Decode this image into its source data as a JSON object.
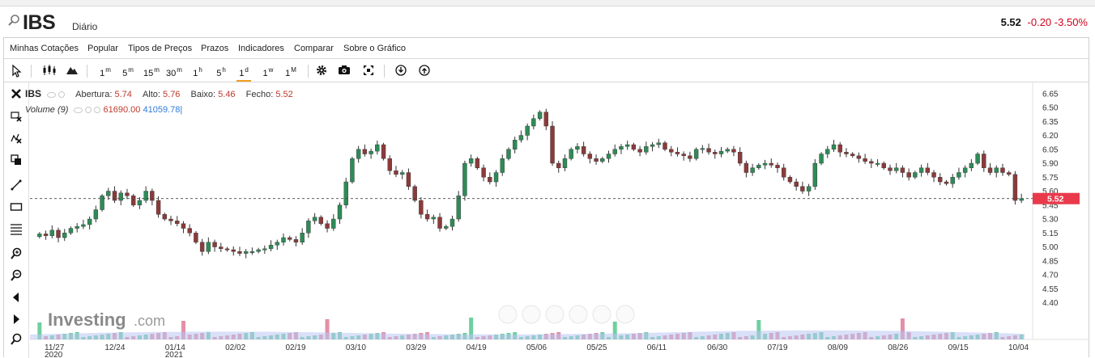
{
  "header": {
    "symbol": "IBS",
    "timeframe": "Diário",
    "price": "5.52",
    "change": "-0.20",
    "change_pct": "-3.50%"
  },
  "menu": [
    "Minhas Cotações",
    "Popular",
    "Tipos de Preços",
    "Prazos",
    "Indicadores",
    "Comparar",
    "Sobre o Gráfico"
  ],
  "toolbar": {
    "intervals": [
      {
        "num": "1",
        "unit": "m"
      },
      {
        "num": "5",
        "unit": "m"
      },
      {
        "num": "15",
        "unit": "m"
      },
      {
        "num": "30",
        "unit": "m"
      },
      {
        "num": "1",
        "unit": "h"
      },
      {
        "num": "5",
        "unit": "h"
      },
      {
        "num": "1",
        "unit": "d"
      },
      {
        "num": "1",
        "unit": "w"
      },
      {
        "num": "1",
        "unit": "M"
      }
    ],
    "active_interval": "1d"
  },
  "legend": {
    "symbol": "IBS",
    "open_label": "Abertura:",
    "open": "5.74",
    "high_label": "Alto:",
    "high": "5.76",
    "low_label": "Baixo:",
    "low": "5.46",
    "close_label": "Fecho:",
    "close": "5.52",
    "volume_label": "Volume (9)",
    "volume": "61690.00",
    "volume_ma": "41059.78"
  },
  "watermark": {
    "brand": "Investing",
    "suffix": ".com"
  },
  "colors": {
    "up": "#2e8b57",
    "down": "#8b3a3a",
    "last_price_tag": "#e83a4b",
    "accent": "#f0a020"
  },
  "chart_data": {
    "type": "candlestick",
    "y_ticks": [
      "6.65",
      "6.50",
      "6.35",
      "6.20",
      "6.05",
      "5.90",
      "5.75",
      "5.60",
      "5.45",
      "5.30",
      "5.15",
      "5.00",
      "4.85",
      "4.70",
      "4.55",
      "4.40"
    ],
    "ylim": [
      4.37,
      6.7
    ],
    "x_ticks": [
      "11/27\n2020",
      "12/24",
      "01/14\n2021",
      "02/02",
      "02/19",
      "03/10",
      "03/29",
      "04/19",
      "05/06",
      "05/25",
      "06/11",
      "06/30",
      "07/19",
      "08/09",
      "08/26",
      "09/15",
      "10/04"
    ],
    "last_price": 5.52,
    "close_series": [
      5.14,
      5.12,
      5.18,
      5.1,
      5.15,
      5.2,
      5.22,
      5.24,
      5.3,
      5.4,
      5.55,
      5.6,
      5.5,
      5.58,
      5.55,
      5.45,
      5.5,
      5.6,
      5.5,
      5.35,
      5.3,
      5.28,
      5.25,
      5.2,
      5.15,
      5.05,
      4.95,
      5.05,
      5.0,
      4.98,
      4.97,
      4.95,
      4.93,
      4.95,
      4.95,
      4.97,
      4.98,
      5.02,
      5.05,
      5.1,
      5.08,
      5.05,
      5.15,
      5.28,
      5.32,
      5.25,
      5.2,
      5.3,
      5.45,
      5.7,
      5.95,
      6.05,
      6.0,
      6.03,
      6.1,
      5.95,
      5.82,
      5.78,
      5.8,
      5.65,
      5.5,
      5.35,
      5.3,
      5.32,
      5.2,
      5.22,
      5.3,
      5.55,
      5.9,
      5.95,
      5.85,
      5.75,
      5.7,
      5.8,
      5.95,
      6.05,
      6.15,
      6.2,
      6.3,
      6.38,
      6.45,
      6.3,
      5.9,
      5.85,
      5.95,
      6.05,
      6.08,
      6.0,
      5.95,
      5.92,
      5.95,
      6.0,
      6.05,
      6.08,
      6.1,
      6.05,
      6.02,
      6.08,
      6.1,
      6.12,
      6.05,
      6.02,
      6.0,
      5.98,
      5.95,
      6.05,
      6.06,
      6.02,
      6.0,
      6.03,
      6.05,
      6.02,
      5.9,
      5.8,
      5.85,
      5.88,
      5.9,
      5.88,
      5.85,
      5.75,
      5.7,
      5.65,
      5.6,
      5.65,
      5.9,
      6.0,
      6.05,
      6.1,
      6.02,
      6.0,
      5.98,
      5.95,
      5.92,
      5.9,
      5.9,
      5.85,
      5.82,
      5.85,
      5.8,
      5.75,
      5.8,
      5.85,
      5.8,
      5.75,
      5.7,
      5.68,
      5.75,
      5.8,
      5.85,
      5.9,
      6.0,
      5.85,
      5.8,
      5.85,
      5.8,
      5.78,
      5.5,
      5.52
    ]
  }
}
